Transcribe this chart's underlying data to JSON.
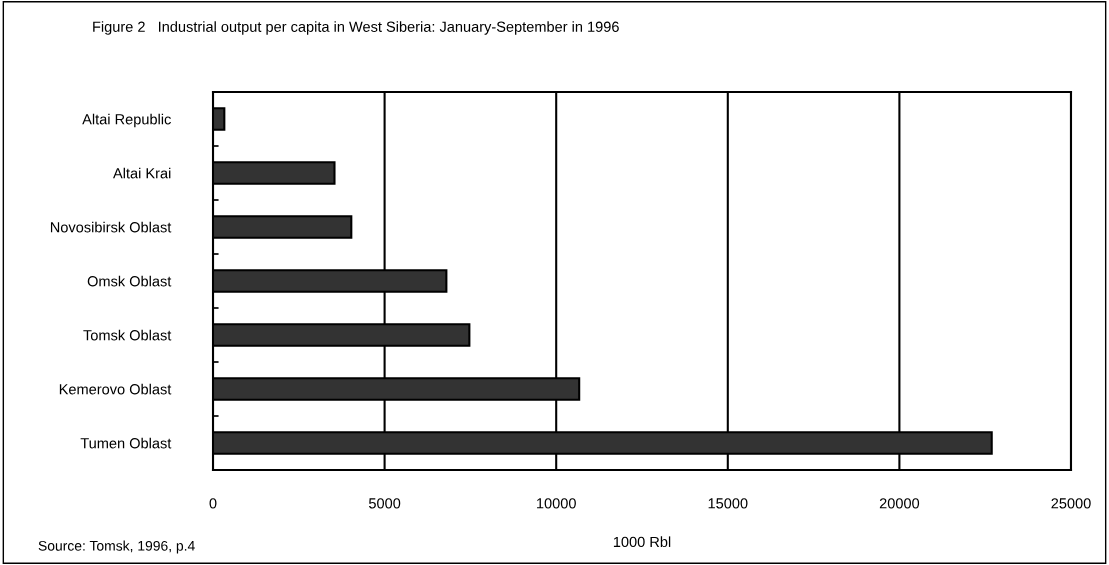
{
  "chart_data": {
    "type": "bar",
    "orientation": "horizontal",
    "title": "Figure 2   Industrial output per capita in West Siberia: January-September in 1996",
    "xlabel": "1000 Rbl",
    "categories": [
      "Altai Republic",
      "Altai Krai",
      "Novosibirsk Oblast",
      "Omsk Oblast",
      "Tomsk Oblast",
      "Kemerovo Oblast",
      "Tumen Oblast"
    ],
    "values": [
      330,
      3540,
      4030,
      6800,
      7470,
      10670,
      22690
    ],
    "color": "#333333",
    "xlim": [
      0,
      25000
    ],
    "xticks": [
      0,
      5000,
      10000,
      15000,
      20000,
      25000
    ],
    "grid": "x",
    "annotations": [
      "Source: Tomsk, 1996, p.4"
    ]
  }
}
